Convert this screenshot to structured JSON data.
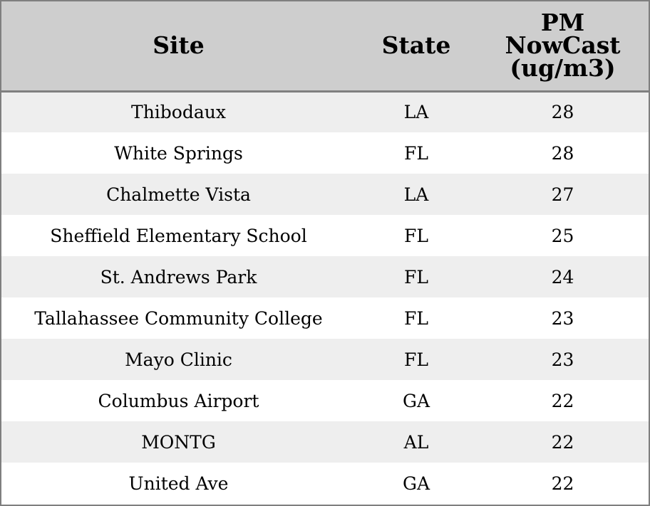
{
  "chart_data": {
    "type": "table",
    "columns": [
      "Site",
      "State",
      "PM NowCast (ug/m3)"
    ],
    "header_lines": {
      "site": "Site",
      "state": "State",
      "pm": [
        "PM",
        "NowCast",
        "(ug/m3)"
      ]
    },
    "rows": [
      {
        "site": "Thibodaux",
        "state": "LA",
        "pm": "28"
      },
      {
        "site": "White Springs",
        "state": "FL",
        "pm": "28"
      },
      {
        "site": "Chalmette Vista",
        "state": "LA",
        "pm": "27"
      },
      {
        "site": "Sheffield Elementary School",
        "state": "FL",
        "pm": "25"
      },
      {
        "site": "St. Andrews Park",
        "state": "FL",
        "pm": "24"
      },
      {
        "site": "Tallahassee Community College",
        "state": "FL",
        "pm": "23"
      },
      {
        "site": "Mayo Clinic",
        "state": "FL",
        "pm": "23"
      },
      {
        "site": "Columbus Airport",
        "state": "GA",
        "pm": "22"
      },
      {
        "site": "MONTG",
        "state": "AL",
        "pm": "22"
      },
      {
        "site": "United Ave",
        "state": "GA",
        "pm": "22"
      }
    ]
  },
  "colors": {
    "header_bg": "#cecece",
    "row_alt_bg": "#eeeeee",
    "row_bg": "#ffffff",
    "border": "#7f7f7f"
  }
}
